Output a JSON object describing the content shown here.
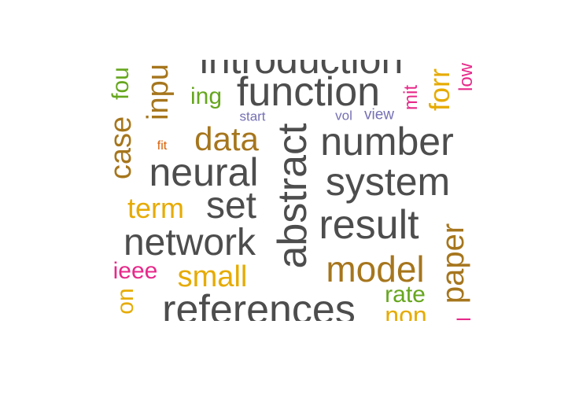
{
  "colors": {
    "gray": "#4d4d4d",
    "brown": "#a6761d",
    "gold": "#e6ab02",
    "green": "#66a61e",
    "magenta": "#e7298a",
    "purple": "#7570b3",
    "orange": "#d95f02"
  },
  "words": [
    {
      "text": "introduction",
      "color": "gray"
    },
    {
      "text": "function",
      "color": "gray"
    },
    {
      "text": "abstract",
      "color": "gray"
    },
    {
      "text": "number",
      "color": "gray"
    },
    {
      "text": "system",
      "color": "gray"
    },
    {
      "text": "neural",
      "color": "gray"
    },
    {
      "text": "result",
      "color": "gray"
    },
    {
      "text": "network",
      "color": "gray"
    },
    {
      "text": "references",
      "color": "gray"
    },
    {
      "text": "set",
      "color": "gray"
    },
    {
      "text": "model",
      "color": "brown"
    },
    {
      "text": "data",
      "color": "brown"
    },
    {
      "text": "case",
      "color": "brown"
    },
    {
      "text": "paper",
      "color": "brown"
    },
    {
      "text": "inpu",
      "color": "brown"
    },
    {
      "text": "forr",
      "color": "gold"
    },
    {
      "text": "small",
      "color": "gold"
    },
    {
      "text": "term",
      "color": "gold"
    },
    {
      "text": "non",
      "color": "gold"
    },
    {
      "text": "on",
      "color": "gold"
    },
    {
      "text": "rate",
      "color": "green"
    },
    {
      "text": "ing",
      "color": "green"
    },
    {
      "text": "fou",
      "color": "green"
    },
    {
      "text": "ieee",
      "color": "magenta"
    },
    {
      "text": "low",
      "color": "magenta"
    },
    {
      "text": "mit",
      "color": "magenta"
    },
    {
      "text": "l",
      "color": "magenta"
    },
    {
      "text": "start",
      "color": "purple"
    },
    {
      "text": "vol",
      "color": "purple"
    },
    {
      "text": "view",
      "color": "purple"
    },
    {
      "text": "fit",
      "color": "orange"
    }
  ]
}
